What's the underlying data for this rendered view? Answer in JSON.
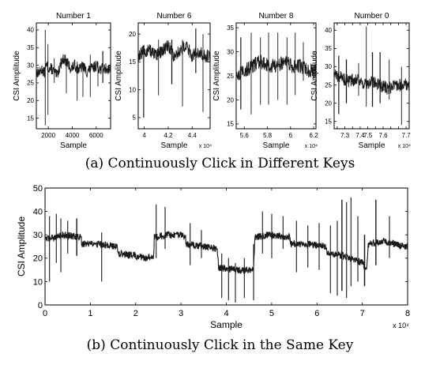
{
  "captions": {
    "a": "(a) Continuously Click in Different Keys",
    "b": "(b) Continuously Click in the Same Key"
  },
  "colors": {
    "trace": "#1a1a1a",
    "axis": "#000000",
    "background": "#ffffff"
  },
  "chart_data": [
    {
      "type": "line",
      "title": "Number 1",
      "xlabel": "Sample",
      "ylabel": "CSI Amplitude",
      "xlim": [
        1000,
        7200
      ],
      "ylim": [
        12,
        42
      ],
      "xticks": [
        2000,
        4000,
        6000
      ],
      "xtick_labels": [
        "2000",
        "4000",
        "6000"
      ],
      "yticks": [
        15,
        20,
        25,
        30,
        35,
        40
      ],
      "ytick_labels": [
        "15",
        "20",
        "25",
        "30",
        "35",
        "40"
      ],
      "x_multiplier": "",
      "series": [
        {
          "x": [
            1000,
            1300,
            1500,
            1600,
            1700,
            1750,
            1900,
            2100,
            2300,
            2500,
            2700,
            2900,
            3100,
            3300,
            3500,
            3700,
            3900,
            4200,
            4400,
            4700,
            4900,
            5200,
            5500,
            5700,
            6000,
            6300,
            6600,
            6900,
            7200
          ],
          "y": [
            28,
            28,
            29,
            28,
            28,
            29,
            30,
            29,
            29,
            28,
            27,
            29,
            31,
            32,
            31,
            30,
            29,
            30,
            29,
            29,
            30,
            28,
            29,
            29,
            30,
            29,
            29,
            29,
            29
          ],
          "noise": 1.6,
          "spikes": [
            {
              "x": 1750,
              "min": 13,
              "max": 40
            },
            {
              "x": 1960,
              "min": 16,
              "max": 36
            },
            {
              "x": 2500,
              "min": 25,
              "max": 32
            },
            {
              "x": 3500,
              "min": 22,
              "max": 31
            },
            {
              "x": 4400,
              "min": 20,
              "max": 31
            },
            {
              "x": 4900,
              "min": 21,
              "max": 29
            },
            {
              "x": 5500,
              "min": 21,
              "max": 33
            },
            {
              "x": 6150,
              "min": 24,
              "max": 31
            },
            {
              "x": 6550,
              "min": 25,
              "max": 34
            }
          ]
        }
      ]
    },
    {
      "type": "line",
      "title": "Number 6",
      "xlabel": "Sample",
      "ylabel": "CSI Amplitude",
      "xlim": [
        39500,
        45500
      ],
      "ylim": [
        3,
        22
      ],
      "xticks": [
        40000,
        42000,
        44000
      ],
      "xtick_labels": [
        "4",
        "4.2",
        "4.4"
      ],
      "yticks": [
        5,
        10,
        15,
        20
      ],
      "ytick_labels": [
        "5",
        "10",
        "15",
        "20"
      ],
      "x_multiplier": "x 10⁴",
      "series": [
        {
          "x": [
            39500,
            40000,
            40500,
            41000,
            41500,
            42000,
            42500,
            43000,
            43500,
            44000,
            44500,
            45000,
            45500
          ],
          "y": [
            16,
            17,
            17,
            16,
            17,
            18,
            16,
            17,
            18,
            16,
            17,
            16,
            16
          ],
          "noise": 1.2,
          "spikes": [
            {
              "x": 39950,
              "min": 5,
              "max": 18
            },
            {
              "x": 41200,
              "min": 9,
              "max": 19
            },
            {
              "x": 42300,
              "min": 11,
              "max": 19
            },
            {
              "x": 43200,
              "min": 7,
              "max": 19
            },
            {
              "x": 44300,
              "min": 13,
              "max": 21
            },
            {
              "x": 44900,
              "min": 6,
              "max": 20
            }
          ]
        }
      ]
    },
    {
      "type": "line",
      "title": "Number 8",
      "xlabel": "Sample",
      "ylabel": "CSI Amplitude",
      "xlim": [
        55300,
        62200
      ],
      "ylim": [
        14,
        36
      ],
      "xticks": [
        56000,
        58000,
        60000,
        62000
      ],
      "xtick_labels": [
        "5.6",
        "5.8",
        "6",
        "6.2"
      ],
      "yticks": [
        15,
        20,
        25,
        30,
        35
      ],
      "ytick_labels": [
        "15",
        "20",
        "25",
        "30",
        "35"
      ],
      "x_multiplier": "x 10⁴",
      "series": [
        {
          "x": [
            55300,
            56000,
            56700,
            57400,
            58100,
            58800,
            59500,
            60200,
            60900,
            61600,
            62200
          ],
          "y": [
            25,
            26,
            27,
            28,
            27,
            27,
            28,
            27,
            27,
            26,
            26
          ],
          "noise": 1.5,
          "spikes": [
            {
              "x": 55700,
              "min": 18,
              "max": 33
            },
            {
              "x": 56600,
              "min": 17,
              "max": 34
            },
            {
              "x": 57400,
              "min": 19,
              "max": 33
            },
            {
              "x": 58100,
              "min": 19,
              "max": 34
            },
            {
              "x": 58900,
              "min": 20,
              "max": 34
            },
            {
              "x": 59700,
              "min": 19,
              "max": 33
            },
            {
              "x": 60400,
              "min": 21,
              "max": 34
            },
            {
              "x": 61100,
              "min": 24,
              "max": 32
            }
          ]
        }
      ]
    },
    {
      "type": "line",
      "title": "Number 0",
      "xlabel": "Sample",
      "ylabel": "CSI Amplitude",
      "xlim": [
        72300,
        77200
      ],
      "ylim": [
        13,
        42
      ],
      "xticks": [
        72500,
        73000,
        73500,
        74000,
        74500,
        75000,
        75500,
        76000,
        76500,
        77000
      ],
      "xtick_labels": [
        "",
        "7.3",
        "",
        "7.4",
        "7.5",
        "",
        "7.6",
        "",
        "",
        "7.7"
      ],
      "yticks": [
        15,
        20,
        25,
        30,
        35,
        40
      ],
      "ytick_labels": [
        "15",
        "20",
        "25",
        "30",
        "35",
        "40"
      ],
      "x_multiplier": "x 10⁴",
      "series": [
        {
          "x": [
            72300,
            72800,
            73300,
            73800,
            74300,
            74800,
            75300,
            75800,
            76300,
            76800,
            77200
          ],
          "y": [
            28,
            27,
            26,
            27,
            25,
            26,
            25,
            24,
            25,
            25,
            25
          ],
          "noise": 1.8,
          "spikes": [
            {
              "x": 72600,
              "min": 17,
              "max": 33
            },
            {
              "x": 73100,
              "min": 20,
              "max": 32
            },
            {
              "x": 73900,
              "min": 22,
              "max": 31
            },
            {
              "x": 74400,
              "min": 19,
              "max": 41
            },
            {
              "x": 74800,
              "min": 19,
              "max": 34
            },
            {
              "x": 75300,
              "min": 20,
              "max": 34
            },
            {
              "x": 75900,
              "min": 21,
              "max": 32
            },
            {
              "x": 76700,
              "min": 14,
              "max": 30
            }
          ]
        }
      ]
    },
    {
      "type": "line",
      "title": "",
      "xlabel": "Sample",
      "ylabel": "CSI Amplitude",
      "xlim": [
        0,
        80000
      ],
      "ylim": [
        0,
        50
      ],
      "xticks": [
        0,
        10000,
        20000,
        30000,
        40000,
        50000,
        60000,
        70000,
        80000
      ],
      "xtick_labels": [
        "0",
        "1",
        "2",
        "3",
        "4",
        "5",
        "6",
        "7",
        "8"
      ],
      "yticks": [
        0,
        10,
        20,
        30,
        40,
        50
      ],
      "ytick_labels": [
        "0",
        "10",
        "20",
        "30",
        "40",
        "50"
      ],
      "x_multiplier": "x 10⁴",
      "series": [
        {
          "x": [
            0,
            4000,
            8000,
            8100,
            12000,
            16000,
            16100,
            20000,
            22000,
            24000,
            24100,
            27000,
            30000,
            31000,
            31100,
            35000,
            38000,
            38300,
            42000,
            46000,
            46300,
            50000,
            54000,
            54200,
            58000,
            62000,
            62200,
            66000,
            70000,
            71000,
            71300,
            75000,
            79000
          ],
          "y": [
            28,
            30,
            29,
            26,
            26,
            25,
            22,
            21,
            20,
            21,
            29,
            30,
            30,
            29,
            26,
            25,
            24,
            16,
            15,
            15,
            29,
            30,
            29,
            26,
            26,
            25,
            22,
            21,
            18,
            15,
            26,
            27,
            25
          ],
          "noise": 1.5,
          "spikes": [
            {
              "x": 1000,
              "min": 10,
              "max": 38
            },
            {
              "x": 2500,
              "min": 18,
              "max": 39
            },
            {
              "x": 3500,
              "min": 14,
              "max": 37
            },
            {
              "x": 5000,
              "min": 22,
              "max": 36
            },
            {
              "x": 7000,
              "min": 21,
              "max": 37
            },
            {
              "x": 12500,
              "min": 10,
              "max": 31
            },
            {
              "x": 24500,
              "min": 20,
              "max": 43
            },
            {
              "x": 26500,
              "min": 24,
              "max": 42
            },
            {
              "x": 32000,
              "min": 17,
              "max": 35
            },
            {
              "x": 34500,
              "min": 20,
              "max": 32
            },
            {
              "x": 39000,
              "min": 3,
              "max": 22
            },
            {
              "x": 40500,
              "min": 2,
              "max": 20
            },
            {
              "x": 42000,
              "min": 1,
              "max": 18
            },
            {
              "x": 44000,
              "min": 3,
              "max": 20
            },
            {
              "x": 46000,
              "min": 2,
              "max": 26
            },
            {
              "x": 48000,
              "min": 22,
              "max": 40
            },
            {
              "x": 50000,
              "min": 20,
              "max": 39
            },
            {
              "x": 52500,
              "min": 24,
              "max": 38
            },
            {
              "x": 55500,
              "min": 14,
              "max": 36
            },
            {
              "x": 58000,
              "min": 16,
              "max": 34
            },
            {
              "x": 60500,
              "min": 15,
              "max": 35
            },
            {
              "x": 63000,
              "min": 5,
              "max": 34
            },
            {
              "x": 64500,
              "min": 4,
              "max": 36
            },
            {
              "x": 65500,
              "min": 6,
              "max": 45
            },
            {
              "x": 66500,
              "min": 3,
              "max": 44
            },
            {
              "x": 67500,
              "min": 8,
              "max": 46
            },
            {
              "x": 69000,
              "min": 10,
              "max": 38
            },
            {
              "x": 70500,
              "min": 8,
              "max": 30
            },
            {
              "x": 73000,
              "min": 17,
              "max": 45
            },
            {
              "x": 76000,
              "min": 20,
              "max": 38
            }
          ]
        }
      ]
    }
  ]
}
